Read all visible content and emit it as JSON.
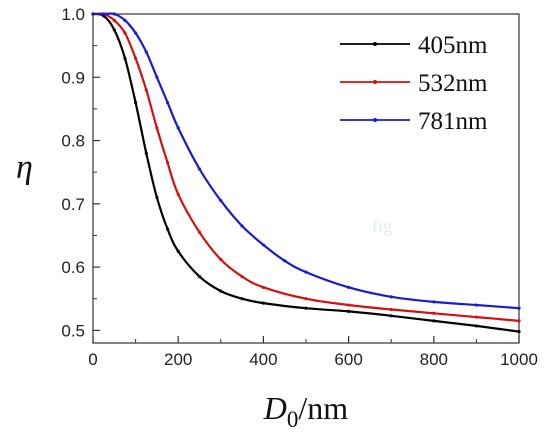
{
  "chart_data": {
    "type": "line",
    "ylabel": "η",
    "xlabel_main": "D",
    "xlabel_sub": "0",
    "xlabel_unit": "/nm",
    "xlim": [
      0,
      1000
    ],
    "ylim": [
      0.48,
      1.0
    ],
    "xticks": [
      "0",
      "200",
      "400",
      "600",
      "800",
      "1000"
    ],
    "yticks": [
      "0.5",
      "0.6",
      "0.7",
      "0.8",
      "0.9",
      "1.0"
    ],
    "legend_position": "top-right",
    "grid": false,
    "watermark": "fig",
    "series": [
      {
        "name": "405nm",
        "color": "#000000",
        "x": [
          0,
          25,
          50,
          75,
          100,
          125,
          150,
          175,
          200,
          250,
          300,
          350,
          400,
          500,
          600,
          700,
          800,
          900,
          1000
        ],
        "y": [
          1.0,
          0.997,
          0.975,
          0.93,
          0.86,
          0.78,
          0.71,
          0.66,
          0.625,
          0.585,
          0.562,
          0.55,
          0.543,
          0.535,
          0.53,
          0.523,
          0.515,
          0.507,
          0.498
        ]
      },
      {
        "name": "532nm",
        "color": "#d41010",
        "x": [
          0,
          25,
          50,
          75,
          100,
          125,
          150,
          175,
          200,
          250,
          300,
          350,
          400,
          500,
          600,
          700,
          800,
          900,
          1000
        ],
        "y": [
          1.0,
          1.0,
          0.99,
          0.97,
          0.93,
          0.88,
          0.82,
          0.765,
          0.715,
          0.655,
          0.612,
          0.585,
          0.568,
          0.55,
          0.54,
          0.533,
          0.527,
          0.521,
          0.515
        ]
      },
      {
        "name": "781nm",
        "color": "#1a1ad0",
        "x": [
          0,
          25,
          50,
          75,
          100,
          125,
          150,
          175,
          200,
          250,
          300,
          350,
          400,
          450,
          500,
          600,
          700,
          800,
          900,
          1000
        ],
        "y": [
          1.0,
          1.0,
          1.0,
          0.99,
          0.97,
          0.94,
          0.9,
          0.86,
          0.82,
          0.755,
          0.705,
          0.665,
          0.635,
          0.61,
          0.592,
          0.568,
          0.553,
          0.545,
          0.54,
          0.535
        ]
      }
    ]
  }
}
